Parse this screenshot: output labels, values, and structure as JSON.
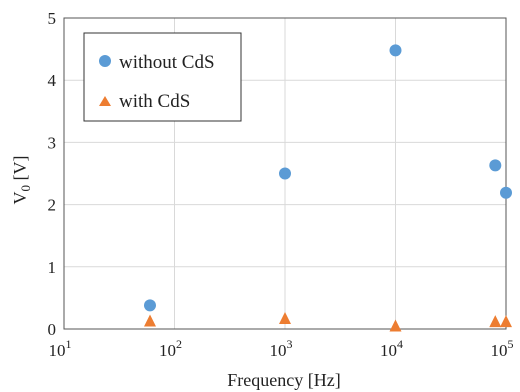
{
  "chart_data": {
    "type": "scatter",
    "xscale": "log",
    "xlim": [
      10,
      100000
    ],
    "ylim": [
      0,
      5
    ],
    "grid": true,
    "legend_position": "top-left",
    "xlabel": "Frequency [Hz]",
    "ylabel_base": "V",
    "ylabel_sub": "0",
    "ylabel_unit": " [V]",
    "x_tick_base": "10",
    "x_tick_exponents": [
      "1",
      "2",
      "3",
      "4",
      "5"
    ],
    "y_ticks": [
      "0",
      "1",
      "2",
      "3",
      "4",
      "5"
    ],
    "series": [
      {
        "name": "without CdS",
        "marker": "circle",
        "color": "#5b9bd5",
        "points": [
          [
            60,
            0.38
          ],
          [
            1000,
            2.5
          ],
          [
            10000,
            4.48
          ],
          [
            80000,
            2.63
          ],
          [
            100000,
            2.19
          ]
        ]
      },
      {
        "name": "with CdS",
        "marker": "triangle",
        "color": "#ed7d31",
        "points": [
          [
            60,
            0.12
          ],
          [
            1000,
            0.16
          ],
          [
            10000,
            0.04
          ],
          [
            80000,
            0.11
          ],
          [
            100000,
            0.11
          ]
        ]
      }
    ]
  }
}
